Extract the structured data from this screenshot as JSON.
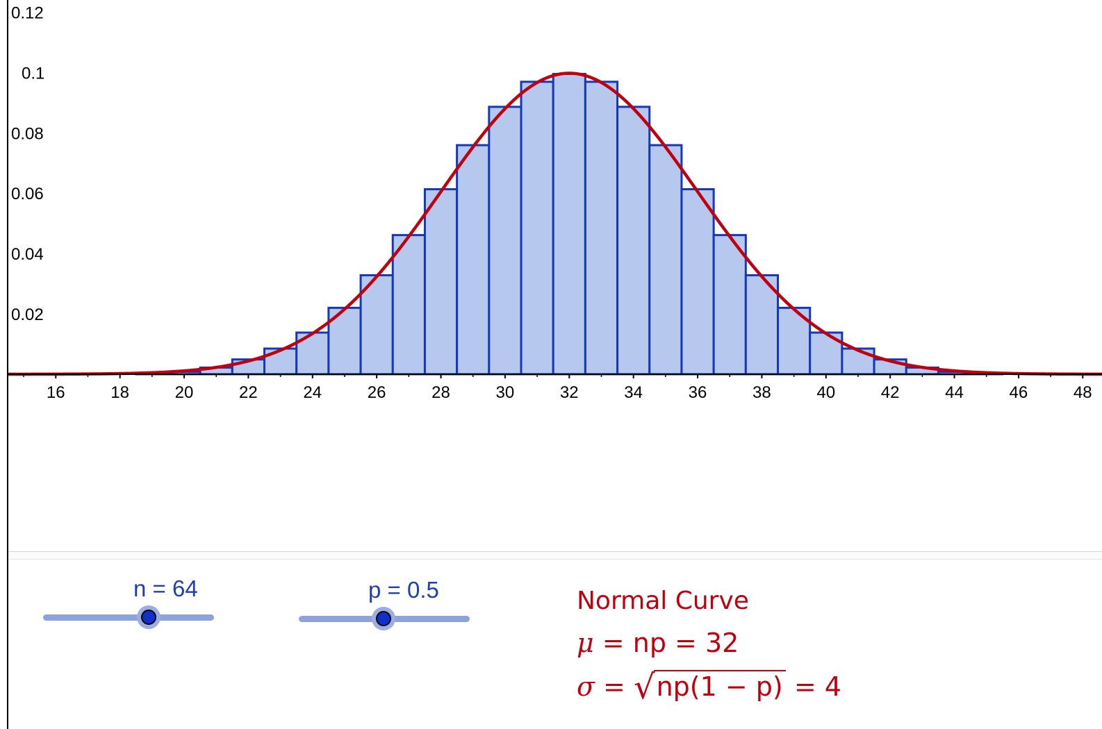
{
  "chart_data": {
    "type": "bar",
    "title": "",
    "xlabel": "",
    "ylabel": "",
    "xlim": [
      14.5,
      48.6
    ],
    "ylim": [
      0,
      0.124
    ],
    "x_ticks": [
      "16",
      "18",
      "20",
      "22",
      "24",
      "26",
      "28",
      "30",
      "32",
      "34",
      "36",
      "38",
      "40",
      "42",
      "44",
      "46",
      "48"
    ],
    "y_ticks": [
      "0.02",
      "0.04",
      "0.06",
      "0.08",
      "0.1",
      "0.12"
    ],
    "categories": [
      19,
      20,
      21,
      22,
      23,
      24,
      25,
      26,
      27,
      28,
      29,
      30,
      31,
      32,
      33,
      34,
      35,
      36,
      37,
      38,
      39,
      40,
      41,
      42,
      43,
      44,
      45
    ],
    "values": [
      0.0003,
      0.0008,
      0.0022,
      0.0049,
      0.0085,
      0.0138,
      0.022,
      0.0328,
      0.0461,
      0.0613,
      0.0759,
      0.0886,
      0.0969,
      0.0995,
      0.0969,
      0.0886,
      0.0759,
      0.0613,
      0.0461,
      0.0328,
      0.022,
      0.0138,
      0.0085,
      0.0049,
      0.0022,
      0.0008,
      0.0003
    ],
    "bar_width": 1,
    "series": [
      {
        "name": "Normal Curve",
        "type": "line",
        "mean": 32,
        "sd": 4
      }
    ],
    "colors": {
      "bar_fill": "#b6c8ee",
      "bar_stroke": "#1438b8",
      "curve": "#c0000f",
      "axis": "#000000"
    },
    "grid": false,
    "legend": "none"
  },
  "controls": {
    "n_slider": {
      "label": "n = 64",
      "value": 64
    },
    "p_slider": {
      "label": "p = 0.5",
      "value": 0.5
    }
  },
  "info": {
    "title": "Normal Curve",
    "mu_symbol": "μ",
    "mu_expr": "np",
    "mu_value": "32",
    "sigma_symbol": "σ",
    "sigma_radicand": "np(1 − p)",
    "sigma_value": "4",
    "equals": "="
  }
}
